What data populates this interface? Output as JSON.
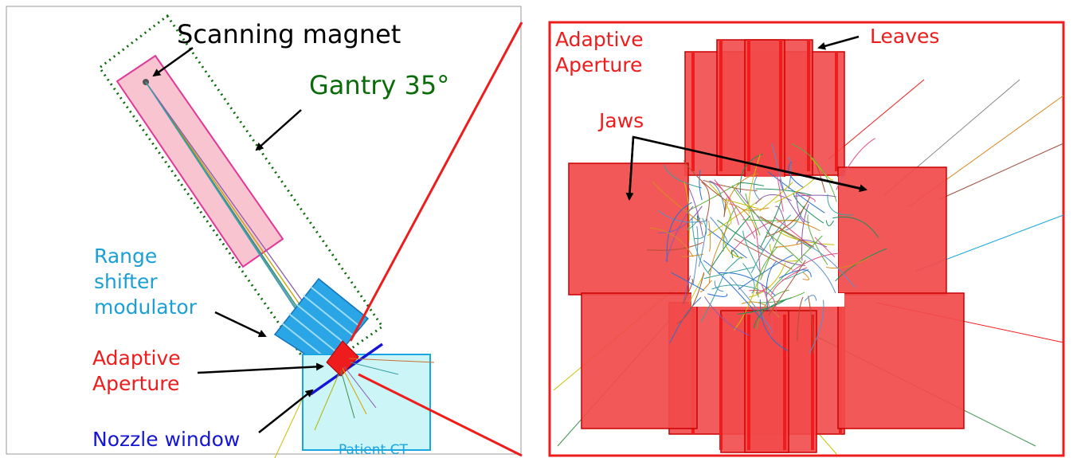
{
  "labels": {
    "scanning_magnet": "Scanning magnet",
    "gantry": "Gantry 35°",
    "range_shifter_line1": "Range",
    "range_shifter_line2": "shifter",
    "range_shifter_line3": "modulator",
    "adaptive_aperture_line1": "Adaptive",
    "adaptive_aperture_line2": "Aperture",
    "nozzle_window": "Nozzle window",
    "patient_ct": "Patient CT",
    "inset_adaptive_line1": "Adaptive",
    "inset_adaptive_line2": "Aperture",
    "leaves": "Leaves",
    "jaws": "Jaws"
  },
  "colors": {
    "black": "#000000",
    "gantry": "#0a6b0a",
    "range_shifter": "#1a9fd6",
    "aperture": "#ee1c1c",
    "nozzle": "#1515d6",
    "patient": "#1aa6e0",
    "patient_fill": "#ccf5f8",
    "magnet_fill": "#f7c4cf",
    "magnet_stroke": "#e0389a",
    "jaw_fill": "#f24a4a"
  }
}
